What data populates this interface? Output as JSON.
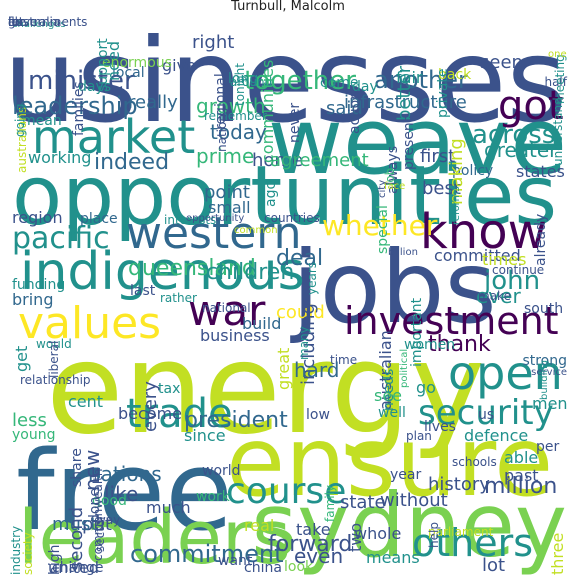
{
  "title": "Turnbull, Malcolm",
  "palette": {
    "purple": "#440154",
    "indigo": "#3b528b",
    "blue": "#31688e",
    "teal": "#21918c",
    "green": "#35b779",
    "lime": "#7ad151",
    "yellow": "#fde725",
    "yellowgreen": "#c2df23"
  },
  "words": [
    {
      "text": "businesses"
    },
    {
      "text": "weave"
    },
    {
      "text": "opportunities"
    },
    {
      "text": "jobs"
    },
    {
      "text": "energy"
    },
    {
      "text": "free"
    },
    {
      "text": "ensure"
    },
    {
      "text": "sydney"
    },
    {
      "text": "leaders"
    },
    {
      "text": "market"
    },
    {
      "text": "know"
    },
    {
      "text": "indigenous"
    },
    {
      "text": "western"
    },
    {
      "text": "values"
    },
    {
      "text": "investment"
    },
    {
      "text": "war"
    },
    {
      "text": "open"
    },
    {
      "text": "got"
    },
    {
      "text": "trade"
    },
    {
      "text": "security"
    },
    {
      "text": "course"
    },
    {
      "text": "others"
    },
    {
      "text": "president"
    },
    {
      "text": "pacific"
    },
    {
      "text": "minister"
    },
    {
      "text": "together"
    },
    {
      "text": "another"
    },
    {
      "text": "leadership"
    },
    {
      "text": "whether"
    },
    {
      "text": "across"
    },
    {
      "text": "indeed"
    },
    {
      "text": "john"
    },
    {
      "text": "thank"
    },
    {
      "text": "million"
    },
    {
      "text": "commitment"
    },
    {
      "text": "forward"
    },
    {
      "text": "queensland"
    },
    {
      "text": "deal"
    },
    {
      "text": "children"
    },
    {
      "text": "growth"
    },
    {
      "text": "prime"
    },
    {
      "text": "right"
    },
    {
      "text": "said"
    },
    {
      "text": "seen"
    },
    {
      "text": "greater"
    },
    {
      "text": "infrastructure"
    },
    {
      "text": "really"
    },
    {
      "text": "working"
    },
    {
      "text": "today"
    },
    {
      "text": "home"
    },
    {
      "text": "agreement"
    },
    {
      "text": "first"
    },
    {
      "text": "states"
    },
    {
      "text": "point"
    },
    {
      "text": "best"
    },
    {
      "text": "small"
    },
    {
      "text": "region"
    },
    {
      "text": "place"
    },
    {
      "text": "interests"
    },
    {
      "text": "countries"
    },
    {
      "text": "funding"
    },
    {
      "text": "committed"
    },
    {
      "text": "times"
    },
    {
      "text": "ever"
    },
    {
      "text": "continue"
    },
    {
      "text": "bring"
    },
    {
      "text": "last"
    },
    {
      "text": "rather"
    },
    {
      "text": "national"
    },
    {
      "text": "build"
    },
    {
      "text": "could"
    },
    {
      "text": "business"
    },
    {
      "text": "including"
    },
    {
      "text": "south"
    },
    {
      "text": "make"
    },
    {
      "text": "would"
    },
    {
      "text": "australian"
    },
    {
      "text": "important"
    },
    {
      "text": "get"
    },
    {
      "text": "time"
    },
    {
      "text": "liberal"
    },
    {
      "text": "women"
    },
    {
      "text": "strong"
    },
    {
      "text": "great"
    },
    {
      "text": "many"
    },
    {
      "text": "hard"
    },
    {
      "text": "political"
    },
    {
      "text": "low"
    },
    {
      "text": "see"
    },
    {
      "text": "go"
    },
    {
      "text": "us"
    },
    {
      "text": "men"
    },
    {
      "text": "cent"
    },
    {
      "text": "tax"
    },
    {
      "text": "needs"
    },
    {
      "text": "less"
    },
    {
      "text": "young"
    },
    {
      "text": "become"
    },
    {
      "text": "since"
    },
    {
      "text": "world"
    },
    {
      "text": "every"
    },
    {
      "text": "nations"
    },
    {
      "text": "like"
    },
    {
      "text": "work"
    },
    {
      "text": "state"
    },
    {
      "text": "without"
    },
    {
      "text": "history"
    },
    {
      "text": "put"
    },
    {
      "text": "much"
    },
    {
      "text": "new"
    },
    {
      "text": "real"
    },
    {
      "text": "take"
    },
    {
      "text": "must"
    },
    {
      "text": "even"
    },
    {
      "text": "means"
    },
    {
      "text": "second"
    },
    {
      "text": "lot"
    },
    {
      "text": "united"
    },
    {
      "text": "want"
    },
    {
      "text": "china"
    },
    {
      "text": "look"
    },
    {
      "text": "able"
    },
    {
      "text": "past"
    },
    {
      "text": "per"
    },
    {
      "text": "defence"
    },
    {
      "text": "lives"
    },
    {
      "text": "plan"
    },
    {
      "text": "schools"
    },
    {
      "text": "well"
    },
    {
      "text": "year"
    },
    {
      "text": "give"
    },
    {
      "text": "long"
    },
    {
      "text": "around"
    },
    {
      "text": "remember"
    },
    {
      "text": "local"
    },
    {
      "text": "come"
    },
    {
      "text": "day"
    },
    {
      "text": "fair"
    },
    {
      "text": "back"
    },
    {
      "text": "regional"
    },
    {
      "text": "tonight"
    },
    {
      "text": "nation"
    },
    {
      "text": "need"
    },
    {
      "text": "half"
    },
    {
      "text": "action"
    },
    {
      "text": "better"
    },
    {
      "text": "private"
    },
    {
      "text": "days"
    },
    {
      "text": "enormous"
    },
    {
      "text": "mean"
    },
    {
      "text": "understand"
    },
    {
      "text": "meeting"
    },
    {
      "text": "policy"
    },
    {
      "text": "never"
    },
    {
      "text": "communities"
    },
    {
      "text": "families"
    },
    {
      "text": "support"
    },
    {
      "text": "australians"
    },
    {
      "text": "going"
    },
    {
      "text": "ago"
    },
    {
      "text": "making"
    },
    {
      "text": "always"
    },
    {
      "text": "present"
    },
    {
      "text": "job"
    },
    {
      "text": "special"
    },
    {
      "text": "good"
    },
    {
      "text": "already"
    },
    {
      "text": "way"
    },
    {
      "text": "reforms"
    },
    {
      "text": "years"
    },
    {
      "text": "change"
    },
    {
      "text": "share"
    },
    {
      "text": "commonwealth"
    },
    {
      "text": "done"
    },
    {
      "text": "whole"
    },
    {
      "text": "sector"
    },
    {
      "text": "industry"
    },
    {
      "text": "society"
    },
    {
      "text": "high"
    },
    {
      "text": "family"
    },
    {
      "text": "service"
    },
    {
      "text": "challenges"
    },
    {
      "text": "two"
    },
    {
      "text": "one"
    },
    {
      "text": "billion"
    },
    {
      "text": "three"
    },
    {
      "text": "relationship"
    },
    {
      "text": "parliament"
    },
    {
      "text": "building"
    },
    {
      "text": "face"
    },
    {
      "text": "common"
    },
    {
      "text": "opportunity"
    },
    {
      "text": "governments"
    },
    {
      "text": "australia"
    },
    {
      "text": "let"
    },
    {
      "text": "help"
    },
    {
      "text": "for"
    },
    {
      "text": "city"
    },
    {
      "text": "ill"
    },
    {
      "text": "ive"
    }
  ]
}
